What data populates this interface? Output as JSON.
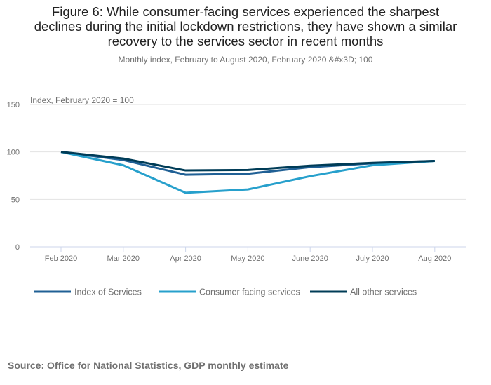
{
  "chart_data": {
    "type": "line",
    "title": "Figure 6: While consumer-facing services experienced the sharpest declines during the initial lockdown restrictions, they have shown a similar recovery to the services sector in recent months",
    "title_lines": [
      "Figure 6: While consumer-facing services experienced the sharpest",
      "declines during the initial lockdown restrictions, they have shown a similar",
      "recovery to the services sector in recent months"
    ],
    "subtitle": "Monthly index, February to August 2020, February 2020 &#x3D; 100",
    "ylabel": "Index, February 2020 = 100",
    "xlabel": "",
    "x": [
      "Feb 2020",
      "Mar 2020",
      "Apr 2020",
      "May 2020",
      "June 2020",
      "July 2020",
      "Aug 2020"
    ],
    "ylim": [
      0,
      150
    ],
    "yticks": [
      0,
      50,
      100,
      150
    ],
    "grid": true,
    "legend_position": "bottom-left",
    "series": [
      {
        "name": "Index of Services",
        "color": "#206095",
        "values": [
          100,
          91.5,
          76,
          77,
          84,
          88,
          90.5
        ]
      },
      {
        "name": "Consumer facing services",
        "color": "#27a0cc",
        "values": [
          100,
          86,
          57,
          60.5,
          74.5,
          86,
          90.5
        ]
      },
      {
        "name": "All other services",
        "color": "#003c57",
        "values": [
          100,
          93,
          80.5,
          81,
          85.5,
          88.5,
          90.5
        ]
      }
    ],
    "source": "Source: Office for National Statistics, GDP monthly estimate"
  }
}
